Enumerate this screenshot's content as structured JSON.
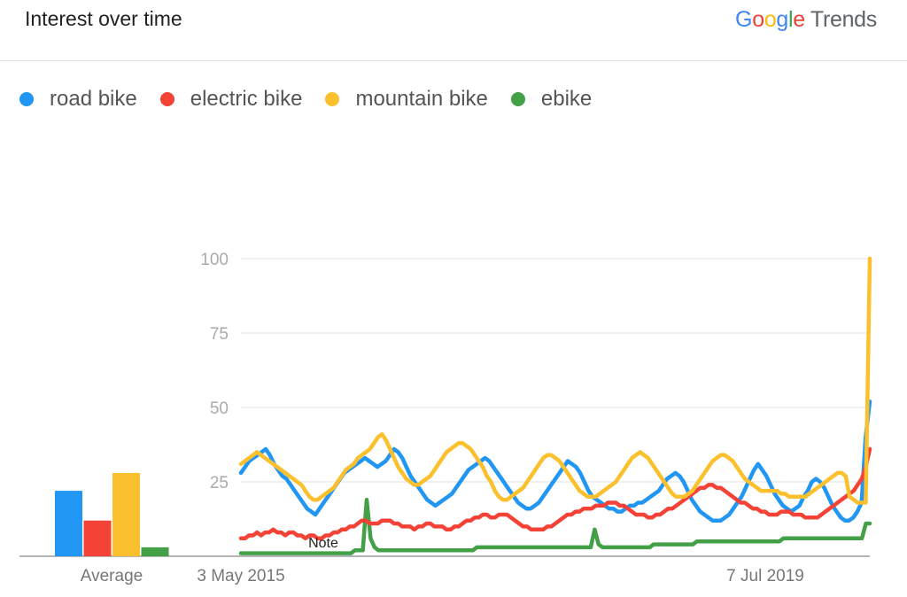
{
  "header": {
    "title": "Interest over time"
  },
  "brand": {
    "google": "Google",
    "trends": "Trends"
  },
  "colors": {
    "road_bike": "#2196f3",
    "electric_bike": "#f44336",
    "mountain_bike": "#fbc02d",
    "ebike": "#43a047"
  },
  "chart_data": {
    "type": "line",
    "y_ticks": [
      "25",
      "50",
      "75",
      "100"
    ],
    "ylim": [
      0,
      100
    ],
    "x_tick_labels": [
      "3 May 2015",
      "7 Jul 2019"
    ],
    "grid": true,
    "legend_position": "top-left",
    "annotation": "Note",
    "average_label": "Average",
    "series": [
      {
        "name": "road bike",
        "color": "#2196f3",
        "average": 22,
        "values": [
          28,
          30,
          32,
          33,
          34,
          35,
          36,
          34,
          31,
          29,
          27,
          26,
          24,
          22,
          20,
          18,
          16,
          15,
          14,
          16,
          18,
          20,
          22,
          24,
          26,
          28,
          29,
          30,
          31,
          32,
          33,
          32,
          31,
          30,
          31,
          32,
          34,
          36,
          35,
          33,
          30,
          27,
          25,
          23,
          21,
          19,
          18,
          17,
          18,
          19,
          20,
          21,
          23,
          25,
          27,
          29,
          30,
          31,
          32,
          33,
          32,
          30,
          28,
          26,
          24,
          22,
          20,
          18,
          17,
          16,
          16,
          17,
          18,
          20,
          22,
          24,
          26,
          28,
          30,
          32,
          31,
          30,
          28,
          25,
          22,
          20,
          19,
          18,
          17,
          16,
          16,
          15,
          15,
          16,
          17,
          17,
          18,
          18,
          19,
          20,
          21,
          22,
          24,
          26,
          27,
          28,
          27,
          25,
          22,
          19,
          17,
          15,
          14,
          13,
          12,
          12,
          12,
          13,
          14,
          16,
          18,
          20,
          23,
          26,
          29,
          31,
          29,
          27,
          24,
          21,
          19,
          17,
          16,
          15,
          16,
          17,
          20,
          22,
          25,
          26,
          25,
          23,
          20,
          17,
          15,
          13,
          12,
          12,
          13,
          15,
          18,
          40,
          52
        ]
      },
      {
        "name": "electric bike",
        "color": "#f44336",
        "average": 12,
        "values": [
          6,
          6,
          7,
          7,
          8,
          7,
          8,
          8,
          9,
          8,
          8,
          7,
          8,
          8,
          7,
          7,
          6,
          7,
          7,
          6,
          6,
          7,
          7,
          8,
          8,
          9,
          9,
          10,
          10,
          11,
          12,
          12,
          11,
          11,
          11,
          12,
          12,
          12,
          11,
          11,
          10,
          10,
          10,
          9,
          10,
          10,
          11,
          11,
          10,
          10,
          10,
          9,
          9,
          10,
          10,
          11,
          12,
          12,
          13,
          13,
          14,
          14,
          13,
          13,
          14,
          14,
          14,
          13,
          12,
          11,
          10,
          10,
          9,
          9,
          9,
          9,
          10,
          10,
          11,
          12,
          13,
          14,
          14,
          15,
          15,
          16,
          16,
          16,
          17,
          17,
          17,
          18,
          18,
          18,
          17,
          17,
          16,
          15,
          14,
          14,
          14,
          13,
          13,
          14,
          14,
          15,
          16,
          16,
          17,
          18,
          19,
          20,
          21,
          22,
          23,
          23,
          24,
          24,
          23,
          23,
          22,
          21,
          20,
          19,
          18,
          18,
          17,
          16,
          16,
          15,
          15,
          14,
          14,
          14,
          15,
          15,
          15,
          14,
          14,
          14,
          13,
          13,
          13,
          13,
          14,
          15,
          16,
          17,
          18,
          19,
          20,
          21,
          22,
          24,
          26,
          30,
          36
        ]
      },
      {
        "name": "mountain bike",
        "color": "#fbc02d",
        "average": 28,
        "values": [
          31,
          32,
          33,
          34,
          35,
          34,
          33,
          32,
          31,
          30,
          29,
          28,
          27,
          26,
          25,
          24,
          22,
          20,
          19,
          19,
          20,
          21,
          22,
          23,
          25,
          27,
          29,
          30,
          31,
          33,
          34,
          35,
          36,
          38,
          40,
          41,
          39,
          36,
          33,
          30,
          28,
          26,
          25,
          24,
          24,
          25,
          26,
          27,
          29,
          31,
          33,
          35,
          36,
          37,
          38,
          38,
          37,
          36,
          34,
          32,
          30,
          27,
          25,
          22,
          20,
          19,
          19,
          20,
          21,
          22,
          23,
          25,
          27,
          29,
          31,
          33,
          34,
          34,
          33,
          32,
          30,
          28,
          26,
          24,
          22,
          21,
          20,
          20,
          20,
          21,
          22,
          23,
          24,
          25,
          27,
          29,
          31,
          33,
          34,
          35,
          34,
          33,
          31,
          29,
          27,
          25,
          23,
          21,
          20,
          20,
          20,
          21,
          22,
          24,
          26,
          28,
          30,
          32,
          33,
          34,
          34,
          33,
          32,
          30,
          28,
          26,
          25,
          24,
          23,
          22,
          22,
          22,
          22,
          22,
          21,
          21,
          20,
          20,
          20,
          20,
          20,
          21,
          22,
          23,
          24,
          25,
          26,
          27,
          28,
          28,
          27,
          20,
          19,
          18,
          18,
          18,
          100
        ]
      },
      {
        "name": "ebike",
        "color": "#43a047",
        "average": 3,
        "values": [
          1,
          1,
          1,
          1,
          1,
          1,
          1,
          1,
          1,
          1,
          1,
          1,
          1,
          1,
          1,
          1,
          1,
          1,
          1,
          1,
          1,
          1,
          1,
          1,
          1,
          1,
          1,
          1,
          1,
          2,
          2,
          2,
          19,
          6,
          3,
          2,
          2,
          2,
          2,
          2,
          2,
          2,
          2,
          2,
          2,
          2,
          2,
          2,
          2,
          2,
          2,
          2,
          2,
          2,
          2,
          2,
          2,
          2,
          2,
          2,
          3,
          3,
          3,
          3,
          3,
          3,
          3,
          3,
          3,
          3,
          3,
          3,
          3,
          3,
          3,
          3,
          3,
          3,
          3,
          3,
          3,
          3,
          3,
          3,
          3,
          3,
          3,
          3,
          3,
          3,
          9,
          4,
          3,
          3,
          3,
          3,
          3,
          3,
          3,
          3,
          3,
          3,
          3,
          3,
          3,
          4,
          4,
          4,
          4,
          4,
          4,
          4,
          4,
          4,
          4,
          4,
          5,
          5,
          5,
          5,
          5,
          5,
          5,
          5,
          5,
          5,
          5,
          5,
          5,
          5,
          5,
          5,
          5,
          5,
          5,
          5,
          5,
          5,
          6,
          6,
          6,
          6,
          6,
          6,
          6,
          6,
          6,
          6,
          6,
          6,
          6,
          6,
          6,
          6,
          6,
          6,
          6,
          6,
          6,
          11,
          11
        ]
      }
    ]
  }
}
